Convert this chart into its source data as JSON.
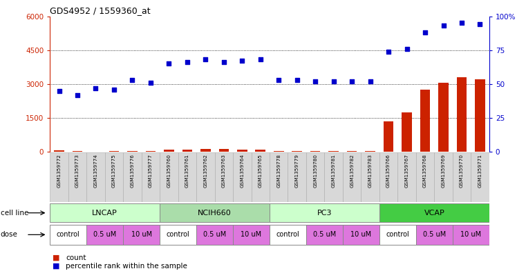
{
  "title": "GDS4952 / 1559360_at",
  "samples": [
    "GSM1359772",
    "GSM1359773",
    "GSM1359774",
    "GSM1359775",
    "GSM1359776",
    "GSM1359777",
    "GSM1359760",
    "GSM1359761",
    "GSM1359762",
    "GSM1359763",
    "GSM1359764",
    "GSM1359765",
    "GSM1359778",
    "GSM1359779",
    "GSM1359780",
    "GSM1359781",
    "GSM1359782",
    "GSM1359783",
    "GSM1359766",
    "GSM1359767",
    "GSM1359768",
    "GSM1359769",
    "GSM1359770",
    "GSM1359771"
  ],
  "counts": [
    55,
    35,
    15,
    45,
    25,
    25,
    85,
    105,
    115,
    115,
    95,
    105,
    35,
    25,
    25,
    25,
    25,
    25,
    1350,
    1750,
    2750,
    3050,
    3300,
    3200
  ],
  "percentiles": [
    45,
    42,
    47,
    46,
    53,
    51,
    65,
    66,
    68,
    66,
    67,
    68,
    53,
    53,
    52,
    52,
    52,
    52,
    74,
    76,
    88,
    93,
    95,
    94
  ],
  "cell_lines": [
    {
      "label": "LNCAP",
      "start": 0,
      "end": 6,
      "color": "#ccffcc"
    },
    {
      "label": "NCIH660",
      "start": 6,
      "end": 12,
      "color": "#aaddaa"
    },
    {
      "label": "PC3",
      "start": 12,
      "end": 18,
      "color": "#ccffcc"
    },
    {
      "label": "VCAP",
      "start": 18,
      "end": 24,
      "color": "#44cc44"
    }
  ],
  "dose_groups": [
    {
      "label": "control",
      "start": 0,
      "end": 2,
      "color": "#ffffff"
    },
    {
      "label": "0.5 uM",
      "start": 2,
      "end": 4,
      "color": "#dd77dd"
    },
    {
      "label": "10 uM",
      "start": 4,
      "end": 6,
      "color": "#dd77dd"
    },
    {
      "label": "control",
      "start": 6,
      "end": 8,
      "color": "#ffffff"
    },
    {
      "label": "0.5 uM",
      "start": 8,
      "end": 10,
      "color": "#dd77dd"
    },
    {
      "label": "10 uM",
      "start": 10,
      "end": 12,
      "color": "#dd77dd"
    },
    {
      "label": "control",
      "start": 12,
      "end": 14,
      "color": "#ffffff"
    },
    {
      "label": "0.5 uM",
      "start": 14,
      "end": 16,
      "color": "#dd77dd"
    },
    {
      "label": "10 uM",
      "start": 16,
      "end": 18,
      "color": "#dd77dd"
    },
    {
      "label": "control",
      "start": 18,
      "end": 20,
      "color": "#ffffff"
    },
    {
      "label": "0.5 uM",
      "start": 20,
      "end": 22,
      "color": "#dd77dd"
    },
    {
      "label": "10 uM",
      "start": 22,
      "end": 24,
      "color": "#dd77dd"
    }
  ],
  "ylim_left": [
    0,
    6000
  ],
  "ylim_right": [
    0,
    100
  ],
  "yticks_left": [
    0,
    1500,
    3000,
    4500,
    6000
  ],
  "yticks_right": [
    0,
    25,
    50,
    75,
    100
  ],
  "bar_color": "#cc2200",
  "dot_color": "#0000cc",
  "background_color": "#ffffff",
  "count_label": "count",
  "percentile_label": "percentile rank within the sample"
}
